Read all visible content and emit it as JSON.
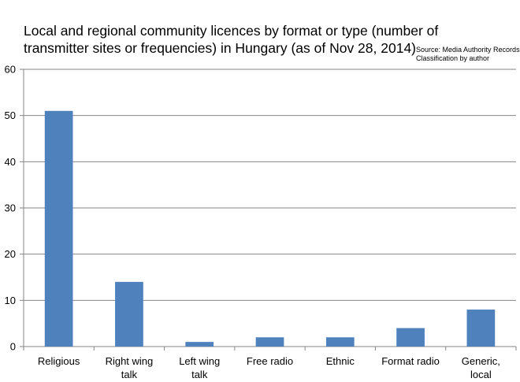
{
  "chart_data": {
    "type": "bar",
    "title": "Local and regional community licences by format or type (number of transmitter sites or frequencies) in Hungary (as of Nov 28, 2014)",
    "source_lines": [
      "Source: Media Authority Records",
      "Classification by author"
    ],
    "categories": [
      "Religious",
      "Right wing talk",
      "Left wing talk",
      "Free radio",
      "Ethnic",
      "Format radio",
      "Generic, local"
    ],
    "category_lines": [
      [
        "Religious"
      ],
      [
        "Right wing",
        "talk"
      ],
      [
        "Left wing",
        "talk"
      ],
      [
        "Free radio"
      ],
      [
        "Ethnic"
      ],
      [
        "Format radio"
      ],
      [
        "Generic,",
        "local"
      ]
    ],
    "values": [
      51,
      14,
      1,
      2,
      2,
      4,
      8
    ],
    "ylim": [
      0,
      60
    ],
    "yticks": [
      0,
      10,
      20,
      30,
      40,
      50,
      60
    ],
    "grid": true,
    "legend": "none",
    "bar_color": "#4f81bd"
  }
}
